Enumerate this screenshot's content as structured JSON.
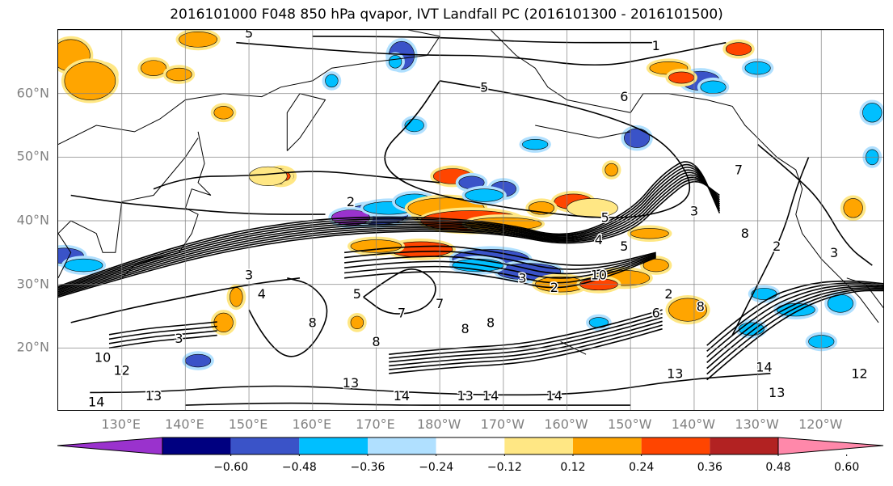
{
  "title": "2016101000 F048 850 hPa qvapor, IVT Landfall PC (2016101300 - 2016101500)",
  "map": {
    "lat_min": 10,
    "lat_max": 70,
    "lon_min": 120,
    "lon_max": 250,
    "lat_gridlines": [
      10,
      20,
      30,
      40,
      50,
      60,
      70
    ],
    "lon_gridlines": [
      130,
      140,
      150,
      160,
      170,
      180,
      190,
      200,
      210,
      220,
      230,
      240,
      250
    ],
    "lat_labels": [
      {
        "lat": 20,
        "text": "20°N"
      },
      {
        "lat": 30,
        "text": "30°N"
      },
      {
        "lat": 40,
        "text": "40°N"
      },
      {
        "lat": 50,
        "text": "50°N"
      },
      {
        "lat": 60,
        "text": "60°N"
      }
    ],
    "lon_labels": [
      {
        "lon": 130,
        "text": "130°E"
      },
      {
        "lon": 140,
        "text": "140°E"
      },
      {
        "lon": 150,
        "text": "150°E"
      },
      {
        "lon": 160,
        "text": "160°E"
      },
      {
        "lon": 170,
        "text": "170°E"
      },
      {
        "lon": 180,
        "text": "180°W"
      },
      {
        "lon": 190,
        "text": "170°W"
      },
      {
        "lon": 200,
        "text": "160°W"
      },
      {
        "lon": 210,
        "text": "150°W"
      },
      {
        "lon": 220,
        "text": "140°W"
      },
      {
        "lon": 230,
        "text": "130°W"
      },
      {
        "lon": 240,
        "text": "120°W"
      }
    ],
    "contour_labels": [
      {
        "lon": 150,
        "lat": 69.5,
        "text": "5"
      },
      {
        "lon": 214,
        "lat": 67.5,
        "text": "1"
      },
      {
        "lon": 187,
        "lat": 61,
        "text": "5"
      },
      {
        "lon": 209,
        "lat": 59.5,
        "text": "6"
      },
      {
        "lon": 166,
        "lat": 43,
        "text": "2"
      },
      {
        "lon": 206,
        "lat": 40.5,
        "text": "5"
      },
      {
        "lon": 205,
        "lat": 37,
        "text": "4"
      },
      {
        "lon": 220,
        "lat": 41.5,
        "text": "3"
      },
      {
        "lon": 228,
        "lat": 38,
        "text": "8"
      },
      {
        "lon": 233,
        "lat": 36,
        "text": "2"
      },
      {
        "lon": 242,
        "lat": 35,
        "text": "3"
      },
      {
        "lon": 209,
        "lat": 36,
        "text": "5"
      },
      {
        "lon": 205,
        "lat": 31.5,
        "text": "10"
      },
      {
        "lon": 193,
        "lat": 31,
        "text": "3"
      },
      {
        "lon": 198,
        "lat": 29.5,
        "text": "2"
      },
      {
        "lon": 216,
        "lat": 28.5,
        "text": "2"
      },
      {
        "lon": 214,
        "lat": 25.5,
        "text": "6"
      },
      {
        "lon": 221,
        "lat": 26.5,
        "text": "8"
      },
      {
        "lon": 152,
        "lat": 28.5,
        "text": "4"
      },
      {
        "lon": 150,
        "lat": 31.5,
        "text": "3"
      },
      {
        "lon": 167,
        "lat": 28.5,
        "text": "5"
      },
      {
        "lon": 174,
        "lat": 25.5,
        "text": "7"
      },
      {
        "lon": 180,
        "lat": 27,
        "text": "7"
      },
      {
        "lon": 184,
        "lat": 23,
        "text": "8"
      },
      {
        "lon": 188,
        "lat": 24,
        "text": "8"
      },
      {
        "lon": 170,
        "lat": 21,
        "text": "8"
      },
      {
        "lon": 160,
        "lat": 24,
        "text": "8"
      },
      {
        "lon": 139,
        "lat": 21.5,
        "text": "3"
      },
      {
        "lon": 127,
        "lat": 18.5,
        "text": "10"
      },
      {
        "lon": 130,
        "lat": 16.5,
        "text": "12"
      },
      {
        "lon": 126,
        "lat": 11.5,
        "text": "14"
      },
      {
        "lon": 135,
        "lat": 12.5,
        "text": "13"
      },
      {
        "lon": 166,
        "lat": 14.5,
        "text": "13"
      },
      {
        "lon": 174,
        "lat": 12.5,
        "text": "14"
      },
      {
        "lon": 184,
        "lat": 12.5,
        "text": "13"
      },
      {
        "lon": 188,
        "lat": 12.5,
        "text": "14"
      },
      {
        "lon": 198,
        "lat": 12.5,
        "text": "14"
      },
      {
        "lon": 217,
        "lat": 16,
        "text": "13"
      },
      {
        "lon": 231,
        "lat": 17,
        "text": "14"
      },
      {
        "lon": 233,
        "lat": 13,
        "text": "13"
      },
      {
        "lon": 246,
        "lat": 16,
        "text": "12"
      },
      {
        "lon": 227,
        "lat": 48,
        "text": "7"
      }
    ]
  },
  "colorbar": {
    "colors": [
      "#9a32cd",
      "#000080",
      "#3a53c8",
      "#00bfff",
      "#b0e0ff",
      "#ffffff",
      "#ffe784",
      "#ffa500",
      "#ff4500",
      "#b22222",
      "#ff88aa"
    ],
    "ticks": [
      "−0.60",
      "−0.48",
      "−0.36",
      "−0.24",
      "−0.12",
      "0.12",
      "0.24",
      "0.36",
      "0.48",
      "0.60"
    ]
  }
}
